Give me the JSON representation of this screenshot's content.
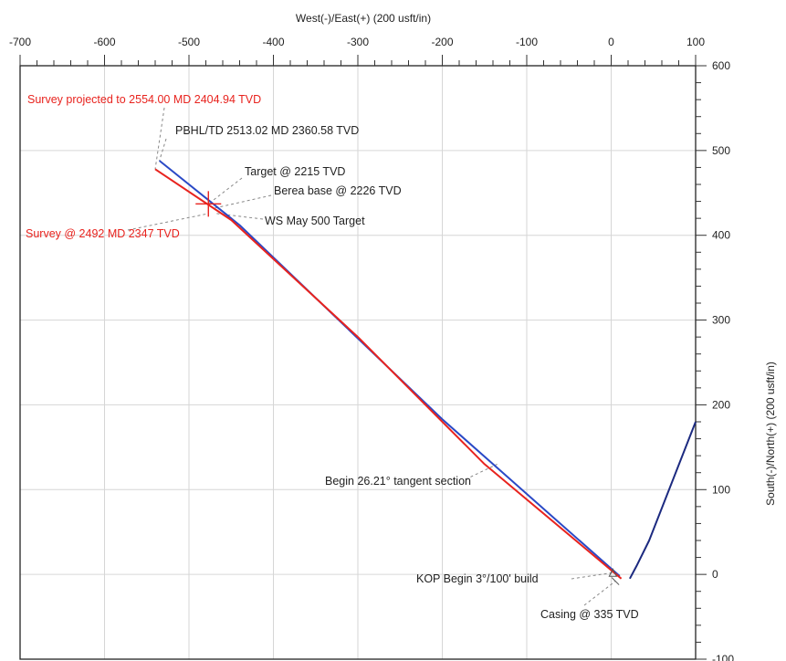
{
  "chart_data": {
    "type": "line",
    "title": "",
    "xlabel": "West(-)/East(+) (200 usft/in)",
    "ylabel": "South(-)/North(+) (200 usft/in)",
    "xlim": [
      -700,
      100
    ],
    "ylim": [
      -100,
      600
    ],
    "x_ticks": [
      "-700",
      "-600",
      "-500",
      "-400",
      "-300",
      "-200",
      "-100",
      "0",
      "100"
    ],
    "y_ticks": [
      "600",
      "500",
      "400",
      "300",
      "200",
      "100",
      "0",
      "-100"
    ],
    "grid": true,
    "series": [
      {
        "color": "#2a49c6",
        "points": [
          [
            10,
            -2
          ],
          [
            -200,
            183
          ],
          [
            -440,
            412
          ],
          [
            -535,
            488
          ]
        ]
      },
      {
        "color": "#e8231e",
        "points": [
          [
            12,
            -5
          ],
          [
            -150,
            130
          ],
          [
            -300,
            280
          ],
          [
            -450,
            418
          ],
          [
            -540,
            478
          ]
        ]
      },
      {
        "color": "#1c2a80",
        "points": [
          [
            22,
            -5
          ],
          [
            30,
            10
          ],
          [
            45,
            40
          ],
          [
            100,
            180
          ]
        ]
      }
    ],
    "annotations": [
      {
        "text": "Survey projected to 2554.00 MD 2404.94 TVD",
        "x": -540,
        "y": 478,
        "color": "#e8231e"
      },
      {
        "text": "PBHL/TD 2513.02 MD 2360.58 TVD",
        "x": -535,
        "y": 488,
        "color": "#222222"
      },
      {
        "text": "Target @ 2215 TVD",
        "x": -477,
        "y": 437,
        "color": "#222222"
      },
      {
        "text": "Berea base @ 2226 TVD",
        "x": -470,
        "y": 432,
        "color": "#222222"
      },
      {
        "text": "WS May 500 Target",
        "x": -470,
        "y": 426,
        "color": "#222222"
      },
      {
        "text": "Survey @ 2492 MD 2347 TVD",
        "x": -480,
        "y": 425,
        "color": "#e8231e"
      },
      {
        "text": "Begin 26.21° tangent section",
        "x": -135,
        "y": 130,
        "color": "#222222"
      },
      {
        "text": "KOP Begin 3°/100' build",
        "x": 2,
        "y": 2,
        "color": "#222222"
      },
      {
        "text": "Casing @ 335 TVD",
        "x": 5,
        "y": -8,
        "color": "#222222"
      }
    ]
  }
}
